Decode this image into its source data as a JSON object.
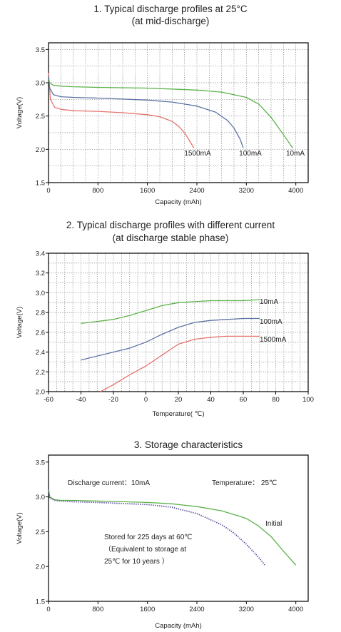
{
  "chart_data": [
    {
      "type": "line",
      "title": "1. Typical discharge profiles at 25°C",
      "subtitle": "(at mid-discharge)",
      "xlabel": "Capacity (mAh)",
      "ylabel": "Voltage(V)",
      "xlim": [
        0,
        4200
      ],
      "ylim": [
        1.5,
        3.6
      ],
      "xticks": [
        "0",
        "800",
        "1600",
        "2400",
        "3200",
        "4000"
      ],
      "yticks": [
        "1.5",
        "2.0",
        "2.5",
        "3.0",
        "3.5"
      ],
      "grid": true,
      "series": [
        {
          "name": "1500mA",
          "color": "#e8736f",
          "x": [
            0,
            30,
            100,
            200,
            400,
            800,
            1200,
            1600,
            1800,
            2000,
            2100,
            2200,
            2300,
            2350
          ],
          "y": [
            3.15,
            2.75,
            2.63,
            2.6,
            2.58,
            2.57,
            2.55,
            2.52,
            2.49,
            2.42,
            2.35,
            2.25,
            2.1,
            2.02
          ]
        },
        {
          "name": "100mA",
          "color": "#5e73a6",
          "x": [
            0,
            20,
            80,
            200,
            400,
            800,
            1600,
            2000,
            2400,
            2700,
            2900,
            3000,
            3100,
            3150
          ],
          "y": [
            3.1,
            2.92,
            2.82,
            2.79,
            2.78,
            2.77,
            2.74,
            2.71,
            2.65,
            2.56,
            2.43,
            2.32,
            2.15,
            2.02
          ]
        },
        {
          "name": "10mA",
          "color": "#5cb249",
          "x": [
            0,
            20,
            80,
            200,
            400,
            800,
            1600,
            2400,
            2800,
            3200,
            3400,
            3600,
            3800,
            3950
          ],
          "y": [
            3.05,
            3.0,
            2.96,
            2.95,
            2.94,
            2.93,
            2.92,
            2.89,
            2.86,
            2.78,
            2.68,
            2.48,
            2.22,
            2.02
          ]
        }
      ]
    },
    {
      "type": "line",
      "title": "2. Typical discharge profiles with different current",
      "subtitle": "(at discharge stable phase)",
      "xlabel": "Temperature( ℃)",
      "ylabel": "Voltage(V)",
      "xlim": [
        -60,
        100
      ],
      "ylim": [
        2.0,
        3.4
      ],
      "xticks": [
        "-60",
        "-40",
        "-20",
        "0",
        "20",
        "40",
        "60",
        "80",
        "100"
      ],
      "yticks": [
        "2.0",
        "2.2",
        "2.4",
        "2.6",
        "2.8",
        "3.0",
        "3.2",
        "3.4"
      ],
      "grid": true,
      "series": [
        {
          "name": "10mA",
          "color": "#5cb249",
          "x": [
            -40,
            -30,
            -20,
            -10,
            0,
            10,
            20,
            30,
            40,
            50,
            60,
            70
          ],
          "y": [
            2.69,
            2.71,
            2.73,
            2.77,
            2.82,
            2.87,
            2.9,
            2.91,
            2.92,
            2.92,
            2.92,
            2.93
          ]
        },
        {
          "name": "100mA",
          "color": "#5e73a6",
          "x": [
            -40,
            -30,
            -20,
            -10,
            0,
            10,
            20,
            30,
            40,
            50,
            60,
            70
          ],
          "y": [
            2.32,
            2.36,
            2.4,
            2.44,
            2.5,
            2.58,
            2.65,
            2.7,
            2.72,
            2.73,
            2.74,
            2.74
          ]
        },
        {
          "name": "1500mA",
          "color": "#e8736f",
          "x": [
            -28,
            -20,
            -10,
            0,
            10,
            20,
            30,
            40,
            50,
            60,
            70
          ],
          "y": [
            2.0,
            2.07,
            2.17,
            2.26,
            2.37,
            2.48,
            2.53,
            2.55,
            2.56,
            2.56,
            2.56
          ]
        }
      ]
    },
    {
      "type": "line",
      "title": "3. Storage characteristics",
      "xlabel": "Capacity (mAh)",
      "ylabel": "Voltage(V)",
      "xlim": [
        0,
        4200
      ],
      "ylim": [
        1.5,
        3.6
      ],
      "xticks": [
        "0",
        "800",
        "1600",
        "2400",
        "3200",
        "4000"
      ],
      "yticks": [
        "1.5",
        "2.0",
        "2.5",
        "3.0",
        "3.5"
      ],
      "grid": false,
      "annotations": [
        "Discharge current：10mA",
        "Temperature： 25℃",
        "Stored for 225 days at 60℃",
        "（Equivalent to storage at",
        "25℃ for 10 years ）"
      ],
      "series": [
        {
          "name": "Initial",
          "color": "#5cb249",
          "style": "solid",
          "x": [
            0,
            20,
            100,
            200,
            400,
            800,
            1600,
            2000,
            2400,
            2800,
            3200,
            3400,
            3600,
            3800,
            4000
          ],
          "y": [
            3.1,
            3.0,
            2.96,
            2.95,
            2.95,
            2.94,
            2.92,
            2.9,
            2.86,
            2.8,
            2.69,
            2.58,
            2.43,
            2.22,
            2.02
          ]
        },
        {
          "name": "",
          "color": "#5a4d9c",
          "style": "dotted",
          "x": [
            0,
            20,
            100,
            200,
            400,
            800,
            1600,
            2000,
            2400,
            2800,
            3000,
            3200,
            3400,
            3500
          ],
          "y": [
            3.12,
            2.98,
            2.95,
            2.94,
            2.93,
            2.92,
            2.89,
            2.85,
            2.76,
            2.6,
            2.48,
            2.32,
            2.13,
            2.02
          ]
        }
      ]
    }
  ]
}
